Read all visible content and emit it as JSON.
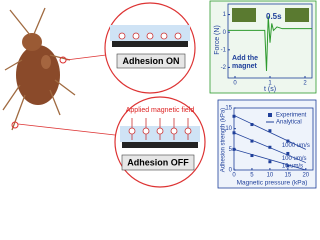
{
  "diagram": {
    "adhesion_on": "Adhesion ON",
    "adhesion_off": "Adhesion OFF",
    "field_label": "Applied magnetic field"
  },
  "chart_data": [
    {
      "type": "line",
      "y_label": "Force (N)",
      "x_label": "t (s)",
      "color": "#2e9a2e",
      "annotations": [
        "0.5s",
        "Add the",
        "magnet"
      ],
      "xlim": [
        -0.2,
        2.2
      ],
      "xticks": [
        0,
        1,
        2
      ],
      "ylim": [
        -2.6,
        1.6
      ],
      "yticks": [
        1,
        0,
        -1,
        -2
      ],
      "x": [
        -0.2,
        0.85,
        0.9,
        0.95,
        1.0,
        1.05,
        1.1,
        1.2,
        1.35,
        1.6,
        2.2
      ],
      "values": [
        0.1,
        0.1,
        -2.2,
        0.9,
        -0.6,
        0.5,
        0.1,
        0.3,
        0.2,
        0.2,
        0.2
      ]
    },
    {
      "type": "scatter",
      "y_label": "Adhesion strength (kPa)",
      "x_label": "Magnetic pressure (kPa)",
      "xlim": [
        0,
        22
      ],
      "xticks": [
        0,
        5,
        10,
        15,
        20
      ],
      "ylim": [
        0,
        15
      ],
      "yticks": [
        0,
        5,
        10,
        15
      ],
      "series": [
        {
          "name": "Experiment",
          "color": "#1f3f9a",
          "x": [
            0,
            5,
            10,
            15,
            0,
            5,
            10,
            15,
            0,
            5,
            10,
            15
          ],
          "values": [
            13,
            11,
            9.5,
            7,
            9,
            7,
            5.5,
            4,
            5,
            3.5,
            2,
            1
          ]
        },
        {
          "name": "Analytical",
          "color": "#1f3f9a",
          "lines": [
            {
              "label": "1000 um/s",
              "x": [
                0,
                20
              ],
              "values": [
                13.2,
                5
              ]
            },
            {
              "label": "100 um/s",
              "x": [
                0,
                20
              ],
              "values": [
                9,
                1.8
              ]
            },
            {
              "label": "10 um/s",
              "x": [
                0,
                20
              ],
              "values": [
                5,
                0
              ]
            }
          ]
        }
      ]
    }
  ]
}
